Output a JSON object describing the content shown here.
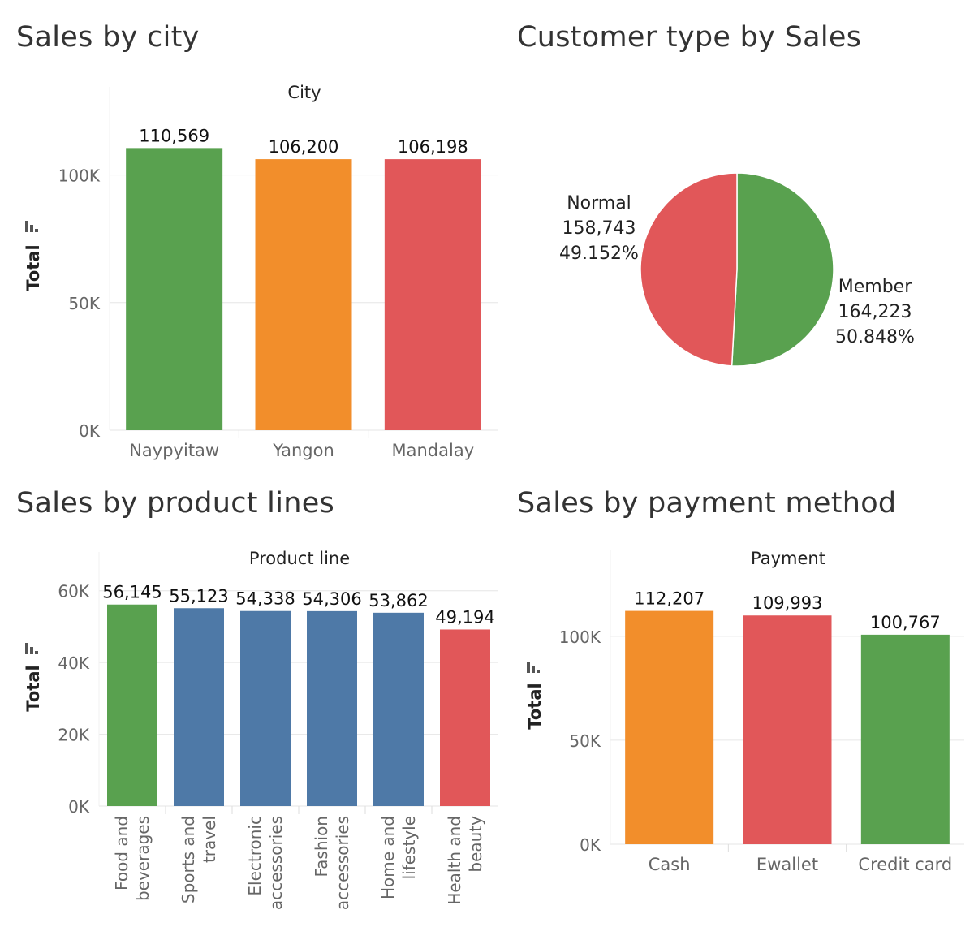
{
  "colors": {
    "green": "#59a14f",
    "orange": "#f28e2b",
    "red": "#e15759",
    "blue": "#4e79a7",
    "text": "#333333",
    "axis": "#666666",
    "grid": "#e6e6e6"
  },
  "icons": {
    "axis_sort": "sort-bars-icon"
  },
  "city": {
    "title": "Sales by city",
    "chart_data": {
      "type": "bar",
      "header": "City",
      "ylabel": "Total",
      "ylim": [
        0,
        125000
      ],
      "yticks": [
        0,
        50000,
        100000
      ],
      "ytick_labels": [
        "0K",
        "50K",
        "100K"
      ],
      "categories": [
        "Naypyitaw",
        "Yangon",
        "Mandalay"
      ],
      "values": [
        110569,
        106200,
        106198
      ],
      "value_labels": [
        "110,569",
        "106,200",
        "106,198"
      ],
      "colors": [
        "#59a14f",
        "#f28e2b",
        "#e15759"
      ]
    }
  },
  "customer": {
    "title": "Customer type by Sales",
    "chart_data": {
      "type": "pie",
      "slices": [
        {
          "label": "Normal",
          "value": 158743,
          "value_label": "158,743",
          "percent": "49.152%",
          "color": "#e15759"
        },
        {
          "label": "Member",
          "value": 164223,
          "value_label": "164,223",
          "percent": "50.848%",
          "color": "#59a14f"
        }
      ]
    }
  },
  "product": {
    "title": "Sales by product lines",
    "chart_data": {
      "type": "bar",
      "header": "Product line",
      "ylabel": "Total",
      "ylim": [
        0,
        64000
      ],
      "yticks": [
        0,
        20000,
        40000,
        60000
      ],
      "ytick_labels": [
        "0K",
        "20K",
        "40K",
        "60K"
      ],
      "categories": [
        [
          "Food and",
          "beverages"
        ],
        [
          "Sports and",
          "travel"
        ],
        [
          "Electronic",
          "accessories"
        ],
        [
          "Fashion",
          "accessories"
        ],
        [
          "Home and",
          "lifestyle"
        ],
        [
          "Health and",
          "beauty"
        ]
      ],
      "values": [
        56145,
        55123,
        54338,
        54306,
        53862,
        49194
      ],
      "value_labels": [
        "56,145",
        "55,123",
        "54,338",
        "54,306",
        "53,862",
        "49,194"
      ],
      "colors": [
        "#59a14f",
        "#4e79a7",
        "#4e79a7",
        "#4e79a7",
        "#4e79a7",
        "#e15759"
      ]
    }
  },
  "payment": {
    "title": "Sales by payment method",
    "chart_data": {
      "type": "bar",
      "header": "Payment",
      "ylabel": "Total",
      "ylim": [
        0,
        130000
      ],
      "yticks": [
        0,
        50000,
        100000
      ],
      "ytick_labels": [
        "0K",
        "50K",
        "100K"
      ],
      "categories": [
        "Cash",
        "Ewallet",
        "Credit card"
      ],
      "values": [
        112207,
        109993,
        100767
      ],
      "value_labels": [
        "112,207",
        "109,993",
        "100,767"
      ],
      "colors": [
        "#f28e2b",
        "#e15759",
        "#59a14f"
      ]
    }
  }
}
